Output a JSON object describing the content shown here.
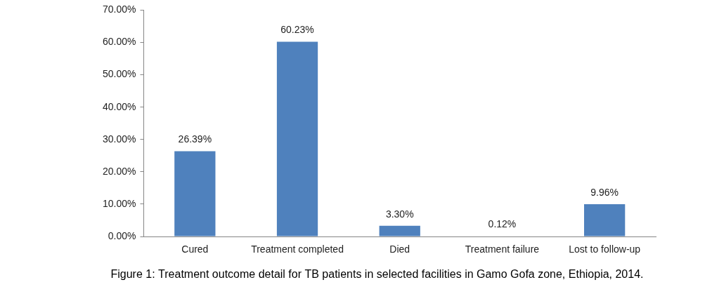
{
  "chart_data": {
    "type": "bar",
    "title": "Figure 1: Treatment outcome detail for TB patients in selected facilities in Gamo Gofa zone, Ethiopia, 2014.",
    "categories": [
      "Cured",
      "Treatment completed",
      "Died",
      "Treatment failure",
      "Lost to follow-up"
    ],
    "values": [
      26.39,
      60.23,
      3.3,
      0.12,
      9.96
    ],
    "value_labels": [
      "26.39%",
      "60.23%",
      "3.30%",
      "0.12%",
      "9.96%"
    ],
    "data_labels": true,
    "color": "#4f81bd",
    "ylim": [
      0,
      70
    ],
    "yticks": [
      {
        "value": 0,
        "label": "0.00%"
      },
      {
        "value": 10,
        "label": "10.00%"
      },
      {
        "value": 20,
        "label": "20.00%"
      },
      {
        "value": 30,
        "label": "30.00%"
      },
      {
        "value": 40,
        "label": "40.00%"
      },
      {
        "value": 50,
        "label": "50.00%"
      },
      {
        "value": 60,
        "label": "60.00%"
      },
      {
        "value": 70,
        "label": "70.00%"
      }
    ],
    "grid": false
  }
}
